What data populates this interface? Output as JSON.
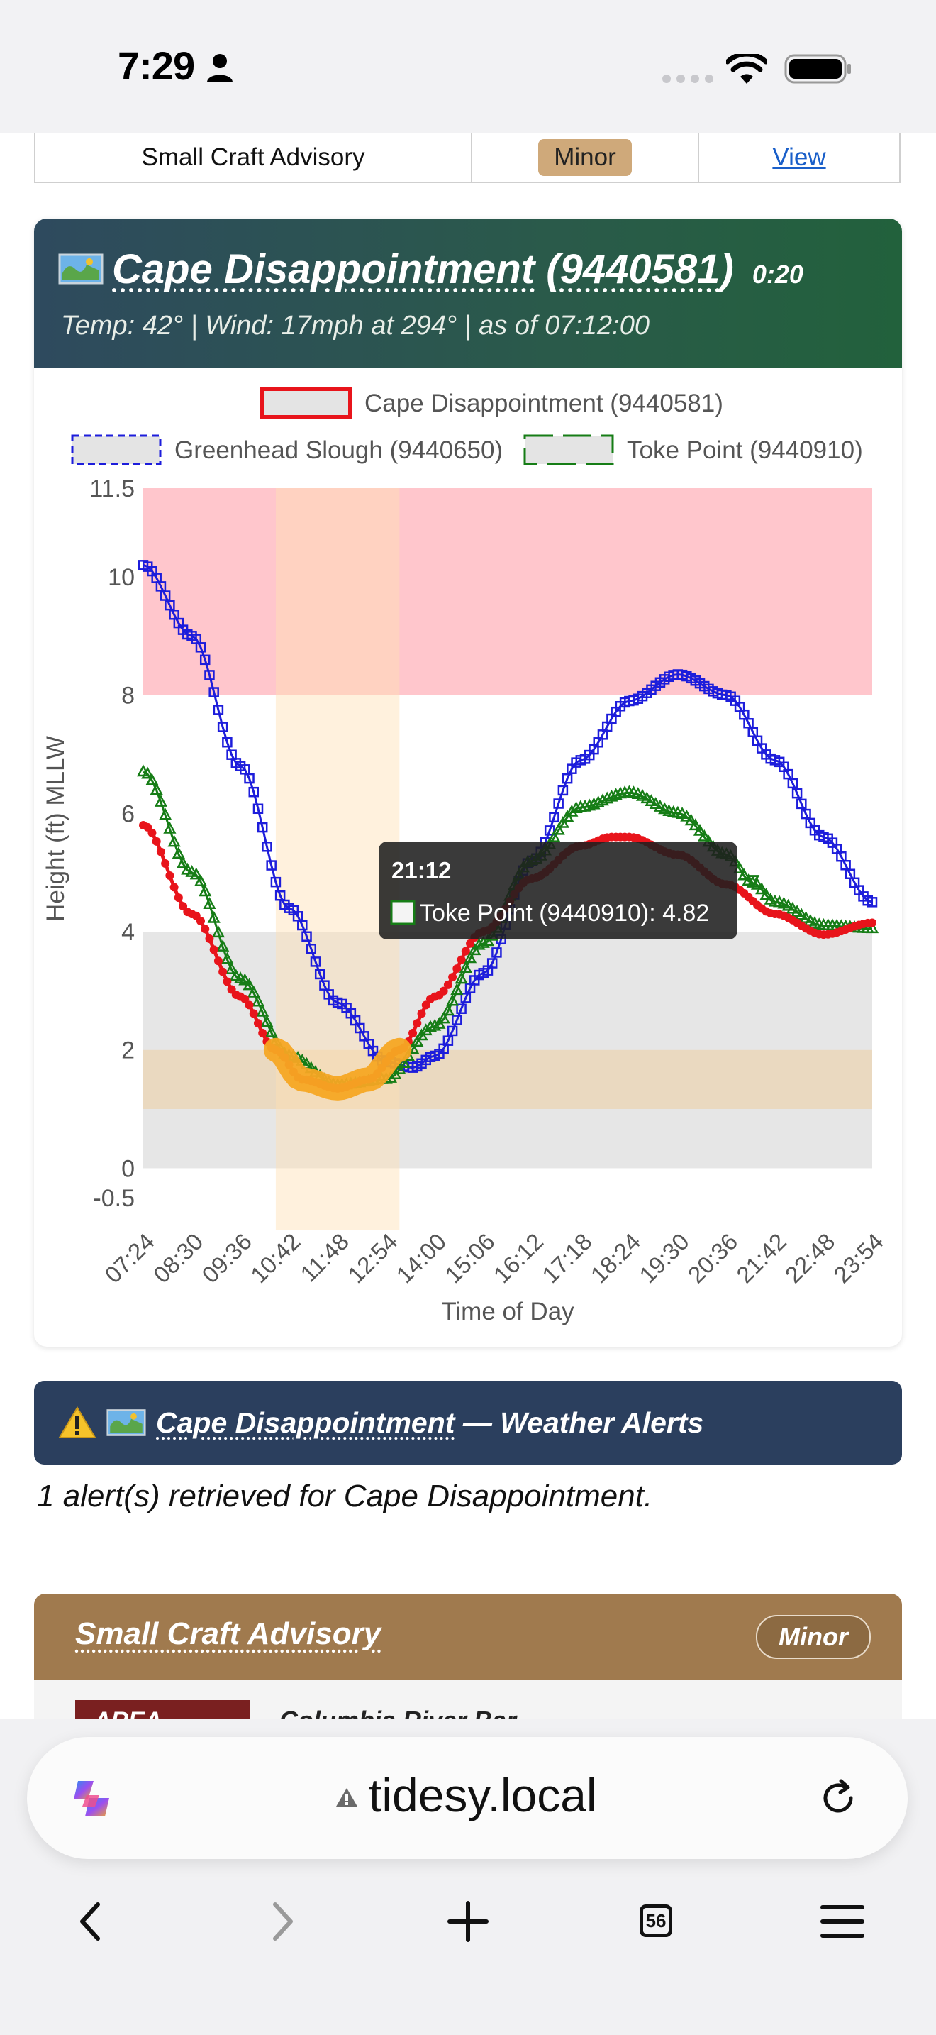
{
  "status_bar": {
    "time": "7:29"
  },
  "top_advisory_row": {
    "event": "Small Craft Advisory",
    "severity": "Minor",
    "link": "View",
    "severity_color": "#cfa97a"
  },
  "station_card": {
    "title_name": "Cape Disappointment",
    "title_id_open": "(",
    "title_id": "9440581",
    "title_id_close": ")",
    "age": "0:20",
    "conditions": "Temp: 42°  |  Wind: 17mph at 294°  |  as of 07:12:00",
    "header_color": "#2a5a4a"
  },
  "chart_data": {
    "type": "line",
    "xlabel": "Time of Day",
    "ylabel": "Height (ft) MLLW",
    "ylim": [
      -0.5,
      11.5
    ],
    "y_ticks": [
      -0.5,
      0,
      2,
      4,
      6,
      8,
      10,
      11.5
    ],
    "x_tick_labels": [
      "07:24",
      "08:30",
      "09:36",
      "10:42",
      "11:48",
      "12:54",
      "14:00",
      "15:06",
      "16:12",
      "17:18",
      "18:24",
      "19:30",
      "20:36",
      "21:42",
      "22:48",
      "23:54"
    ],
    "x_range_minutes": [
      444,
      1434
    ],
    "bands": [
      {
        "from": 8,
        "to": 11.5,
        "color": "#ffc6cc"
      },
      {
        "from": 1,
        "to": 2,
        "color": "#ead9c0"
      },
      {
        "from": 0,
        "to": 1,
        "color": "#e6e6e6"
      },
      {
        "from": 2,
        "to": 4,
        "color": "#e6e6e6"
      }
    ],
    "highlight_window": {
      "from": "10:24",
      "to": "13:12",
      "color": "#fdf0dc"
    },
    "series": [
      {
        "name": "Cape Disappointment (9440581)",
        "color": "#e8141b",
        "legend_style": "solid",
        "marker": "circle",
        "points": [
          [
            "07:24",
            5.8
          ],
          [
            "08:30",
            4.3
          ],
          [
            "09:36",
            2.9
          ],
          [
            "10:24",
            2.0
          ],
          [
            "11:00",
            1.5
          ],
          [
            "11:48",
            1.35
          ],
          [
            "12:30",
            1.5
          ],
          [
            "13:12",
            2.0
          ],
          [
            "14:00",
            2.9
          ],
          [
            "15:06",
            4.0
          ],
          [
            "16:12",
            4.9
          ],
          [
            "17:18",
            5.45
          ],
          [
            "18:00",
            5.6
          ],
          [
            "18:24",
            5.6
          ],
          [
            "19:30",
            5.3
          ],
          [
            "20:36",
            4.8
          ],
          [
            "21:42",
            4.3
          ],
          [
            "22:48",
            3.95
          ],
          [
            "23:54",
            4.15
          ]
        ]
      },
      {
        "name": "Greenhead Slough (9440650)",
        "color": "#1d1ddb",
        "legend_style": "dashed",
        "marker": "square",
        "points": [
          [
            "07:24",
            10.2
          ],
          [
            "08:30",
            9.0
          ],
          [
            "09:36",
            6.8
          ],
          [
            "10:42",
            4.4
          ],
          [
            "11:48",
            2.8
          ],
          [
            "12:54",
            1.8
          ],
          [
            "13:30",
            1.7
          ],
          [
            "14:00",
            1.9
          ],
          [
            "15:06",
            3.3
          ],
          [
            "16:12",
            5.2
          ],
          [
            "17:18",
            6.9
          ],
          [
            "18:24",
            7.9
          ],
          [
            "19:30",
            8.35
          ],
          [
            "20:36",
            8.0
          ],
          [
            "21:42",
            6.9
          ],
          [
            "22:48",
            5.6
          ],
          [
            "23:54",
            4.5
          ]
        ]
      },
      {
        "name": "Toke Point (9440910)",
        "color": "#167d16",
        "legend_style": "solid",
        "marker": "triangle",
        "points": [
          [
            "07:24",
            6.7
          ],
          [
            "08:30",
            5.0
          ],
          [
            "09:36",
            3.2
          ],
          [
            "10:42",
            1.9
          ],
          [
            "11:48",
            1.4
          ],
          [
            "12:54",
            1.5
          ],
          [
            "14:00",
            2.4
          ],
          [
            "15:06",
            3.8
          ],
          [
            "16:12",
            5.2
          ],
          [
            "17:18",
            6.1
          ],
          [
            "18:24",
            6.35
          ],
          [
            "19:30",
            6.0
          ],
          [
            "20:36",
            5.3
          ],
          [
            "21:12",
            4.82
          ],
          [
            "21:42",
            4.5
          ],
          [
            "22:48",
            4.1
          ],
          [
            "23:54",
            4.05
          ]
        ]
      }
    ],
    "tooltip": {
      "time": "21:12",
      "text": "Toke Point (9440910): 4.82",
      "color": "#167d16"
    }
  },
  "alerts": {
    "warning_glyph": "⚠️",
    "station": "Cape Disappointment",
    "suffix": " — Weather Alerts",
    "count_text": "1 alert(s) retrieved for Cape Disappointment.",
    "header_color": "#2b3f5e"
  },
  "advisory_card": {
    "title": "Small Craft Advisory",
    "badge": "Minor",
    "area_label": "AREA",
    "area_value": "Columbia River Bar",
    "header_color": "#a07a4e"
  },
  "browser": {
    "url": "tidesy.local",
    "tab_count": "56",
    "icons": [
      "copilot-logo-icon",
      "warning-icon",
      "reload-icon",
      "back-icon",
      "forward-icon",
      "new-tab-icon",
      "tabs-icon",
      "menu-icon"
    ]
  }
}
